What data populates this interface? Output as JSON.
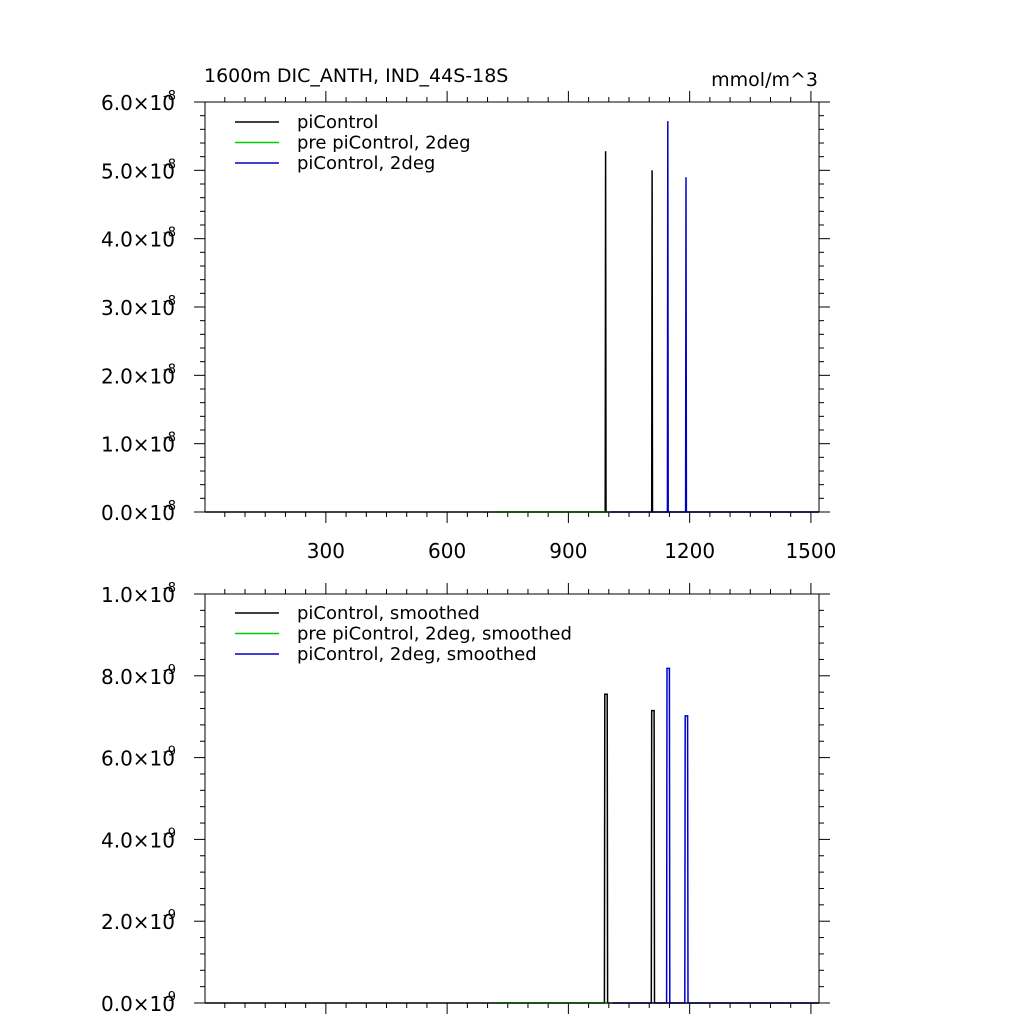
{
  "chart_data": [
    {
      "type": "line",
      "title": "1600m DIC_ANTH, IND_44S-18S",
      "units": "mmol/m^3",
      "xlim": [
        1,
        1520
      ],
      "ylim": [
        0,
        6e-08
      ],
      "xticks": [
        300,
        600,
        900,
        1200,
        1500
      ],
      "xtick_labels": [
        "300",
        "600",
        "900",
        "1200",
        "1500"
      ],
      "yticks": [
        0,
        1e-08,
        2e-08,
        3e-08,
        4e-08,
        5e-08,
        6e-08
      ],
      "ytick_labels": [
        {
          "mantissa": "0.0",
          "exponent": "-8"
        },
        {
          "mantissa": "1.0",
          "exponent": "-8"
        },
        {
          "mantissa": "2.0",
          "exponent": "-8"
        },
        {
          "mantissa": "3.0",
          "exponent": "-8"
        },
        {
          "mantissa": "4.0",
          "exponent": "-8"
        },
        {
          "mantissa": "5.0",
          "exponent": "-8"
        },
        {
          "mantissa": "6.0",
          "exponent": "-8"
        }
      ],
      "legend_position": "top-left",
      "series": [
        {
          "name": "piControl",
          "color": "#000000",
          "x": [
            1,
            991,
            992,
            993,
            1005,
            1106,
            1107,
            1108,
            1520
          ],
          "y": [
            0,
            0,
            5.28e-08,
            0,
            0,
            0,
            5e-08,
            0,
            0
          ]
        },
        {
          "name": "pre piControl, 2deg",
          "color": "#00cc00",
          "x": [
            720,
            1000
          ],
          "y": [
            0,
            0
          ]
        },
        {
          "name": "piControl, 2deg",
          "color": "#0000cc",
          "x": [
            1005,
            1145,
            1146,
            1147,
            1190,
            1191,
            1192,
            1520
          ],
          "y": [
            0,
            0,
            5.72e-08,
            0,
            0,
            4.9e-08,
            0,
            0
          ]
        }
      ]
    },
    {
      "type": "line",
      "xlim": [
        1,
        1520
      ],
      "ylim": [
        0,
        1e-08
      ],
      "yticks": [
        0,
        2e-09,
        4e-09,
        6e-09,
        8e-09,
        1e-08
      ],
      "ytick_labels": [
        {
          "mantissa": "0.0",
          "exponent": "-9"
        },
        {
          "mantissa": "2.0",
          "exponent": "-9"
        },
        {
          "mantissa": "4.0",
          "exponent": "-9"
        },
        {
          "mantissa": "6.0",
          "exponent": "-9"
        },
        {
          "mantissa": "8.0",
          "exponent": "-9"
        },
        {
          "mantissa": "1.0",
          "exponent": "-8"
        }
      ],
      "legend_position": "top-left",
      "series": [
        {
          "name": "piControl, smoothed",
          "color": "#000000",
          "x": [
            1,
            989,
            990,
            996,
            997,
            1105,
            1106,
            1112,
            1113,
            1520
          ],
          "y": [
            0,
            0,
            7.55e-09,
            7.55e-09,
            0,
            0,
            7.15e-09,
            7.15e-09,
            0,
            0
          ]
        },
        {
          "name": "pre piControl, 2deg, smoothed",
          "color": "#00cc00",
          "x": [
            720,
            1000
          ],
          "y": [
            0,
            0
          ]
        },
        {
          "name": "piControl, 2deg, smoothed",
          "color": "#0000cc",
          "x": [
            1010,
            1143,
            1144,
            1150,
            1151,
            1188,
            1189,
            1195,
            1196,
            1520
          ],
          "y": [
            0,
            0,
            8.18e-09,
            8.18e-09,
            0,
            0,
            7.02e-09,
            7.02e-09,
            0,
            0
          ]
        }
      ]
    }
  ]
}
